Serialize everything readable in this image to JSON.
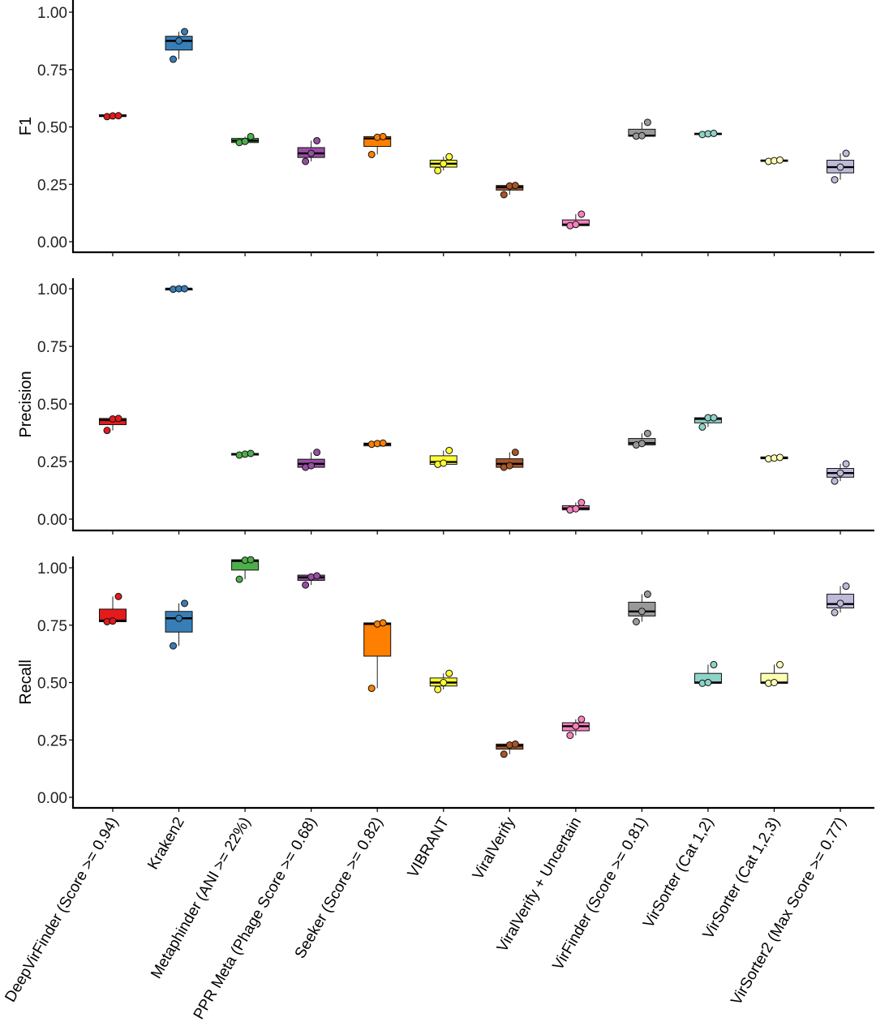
{
  "chart_data": {
    "type": "box",
    "categories": [
      "DeepVirFinder (Score >= 0.94)",
      "Kraken2",
      "Metaphinder (ANI >= 22%)",
      "PPR Meta (Phage Score >= 0.68)",
      "Seeker (Score >= 0.82)",
      "VIBRANT",
      "ViralVerify",
      "ViralVerify + Uncertain",
      "VirFinder (Score >= 0.81)",
      "VirSorter (Cat 1,2)",
      "VirSorter (Cat 1,2,3)",
      "VirSorter2 (Max Score >= 0.77)"
    ],
    "colors": [
      "#e41a1c",
      "#377eb8",
      "#4daf4a",
      "#984ea3",
      "#ff7f00",
      "#ffff33",
      "#a65628",
      "#f781bf",
      "#999999",
      "#8dd3c7",
      "#ffffb3",
      "#bebada"
    ],
    "panels": [
      {
        "ylabel": "F1",
        "ylim": [
          -0.04,
          1.04
        ],
        "yticks": [
          "0.00",
          "0.25",
          "0.50",
          "0.75",
          "1.00"
        ],
        "boxes": [
          {
            "q1": 0.545,
            "median": 0.55,
            "q3": 0.553,
            "whisker_low": 0.545,
            "whisker_high": 0.553,
            "points": [
              0.545,
              0.548,
              0.549
            ]
          },
          {
            "q1": 0.835,
            "median": 0.875,
            "q3": 0.895,
            "whisker_low": 0.795,
            "whisker_high": 0.915,
            "points": [
              0.795,
              0.875,
              0.915
            ]
          },
          {
            "q1": 0.432,
            "median": 0.44,
            "q3": 0.45,
            "whisker_low": 0.432,
            "whisker_high": 0.458,
            "points": [
              0.432,
              0.437,
              0.458
            ]
          },
          {
            "q1": 0.367,
            "median": 0.385,
            "q3": 0.41,
            "whisker_low": 0.35,
            "whisker_high": 0.44,
            "points": [
              0.35,
              0.385,
              0.44
            ]
          },
          {
            "q1": 0.415,
            "median": 0.45,
            "q3": 0.458,
            "whisker_low": 0.38,
            "whisker_high": 0.458,
            "points": [
              0.38,
              0.455,
              0.458
            ]
          },
          {
            "q1": 0.325,
            "median": 0.34,
            "q3": 0.355,
            "whisker_low": 0.31,
            "whisker_high": 0.37,
            "points": [
              0.31,
              0.34,
              0.37
            ]
          },
          {
            "q1": 0.225,
            "median": 0.238,
            "q3": 0.245,
            "whisker_low": 0.205,
            "whisker_high": 0.245,
            "points": [
              0.205,
              0.243,
              0.245
            ]
          },
          {
            "q1": 0.07,
            "median": 0.075,
            "q3": 0.095,
            "whisker_low": 0.07,
            "whisker_high": 0.12,
            "points": [
              0.07,
              0.075,
              0.12
            ]
          },
          {
            "q1": 0.46,
            "median": 0.462,
            "q3": 0.49,
            "whisker_low": 0.46,
            "whisker_high": 0.52,
            "points": [
              0.46,
              0.462,
              0.52
            ]
          },
          {
            "q1": 0.467,
            "median": 0.47,
            "q3": 0.472,
            "whisker_low": 0.467,
            "whisker_high": 0.472,
            "points": [
              0.467,
              0.47,
              0.472
            ]
          },
          {
            "q1": 0.35,
            "median": 0.353,
            "q3": 0.356,
            "whisker_low": 0.35,
            "whisker_high": 0.356,
            "points": [
              0.35,
              0.353,
              0.356
            ]
          },
          {
            "q1": 0.3,
            "median": 0.325,
            "q3": 0.355,
            "whisker_low": 0.27,
            "whisker_high": 0.385,
            "points": [
              0.27,
              0.325,
              0.385
            ]
          }
        ]
      },
      {
        "ylabel": "Precision",
        "ylim": [
          -0.04,
          1.04
        ],
        "yticks": [
          "0.00",
          "0.25",
          "0.50",
          "0.75",
          "1.00"
        ],
        "boxes": [
          {
            "q1": 0.41,
            "median": 0.43,
            "q3": 0.437,
            "whisker_low": 0.385,
            "whisker_high": 0.437,
            "points": [
              0.385,
              0.435,
              0.437
            ]
          },
          {
            "q1": 0.998,
            "median": 1.0,
            "q3": 1.0,
            "whisker_low": 0.998,
            "whisker_high": 1.0,
            "points": [
              0.998,
              1.0,
              1.0
            ]
          },
          {
            "q1": 0.278,
            "median": 0.282,
            "q3": 0.285,
            "whisker_low": 0.278,
            "whisker_high": 0.285,
            "points": [
              0.278,
              0.282,
              0.285
            ]
          },
          {
            "q1": 0.225,
            "median": 0.24,
            "q3": 0.26,
            "whisker_low": 0.225,
            "whisker_high": 0.29,
            "points": [
              0.225,
              0.232,
              0.29
            ]
          },
          {
            "q1": 0.318,
            "median": 0.325,
            "q3": 0.33,
            "whisker_low": 0.318,
            "whisker_high": 0.33,
            "points": [
              0.325,
              0.328,
              0.33
            ]
          },
          {
            "q1": 0.238,
            "median": 0.248,
            "q3": 0.275,
            "whisker_low": 0.238,
            "whisker_high": 0.298,
            "points": [
              0.238,
              0.243,
              0.298
            ]
          },
          {
            "q1": 0.225,
            "median": 0.24,
            "q3": 0.262,
            "whisker_low": 0.225,
            "whisker_high": 0.29,
            "points": [
              0.225,
              0.232,
              0.29
            ]
          },
          {
            "q1": 0.04,
            "median": 0.047,
            "q3": 0.058,
            "whisker_low": 0.04,
            "whisker_high": 0.072,
            "points": [
              0.04,
              0.045,
              0.072
            ]
          },
          {
            "q1": 0.322,
            "median": 0.33,
            "q3": 0.35,
            "whisker_low": 0.322,
            "whisker_high": 0.372,
            "points": [
              0.322,
              0.328,
              0.372
            ]
          },
          {
            "q1": 0.418,
            "median": 0.435,
            "q3": 0.44,
            "whisker_low": 0.4,
            "whisker_high": 0.44,
            "points": [
              0.4,
              0.44,
              0.44
            ]
          },
          {
            "q1": 0.262,
            "median": 0.265,
            "q3": 0.27,
            "whisker_low": 0.262,
            "whisker_high": 0.27,
            "points": [
              0.262,
              0.265,
              0.268
            ]
          },
          {
            "q1": 0.182,
            "median": 0.2,
            "q3": 0.22,
            "whisker_low": 0.165,
            "whisker_high": 0.24,
            "points": [
              0.165,
              0.2,
              0.24
            ]
          }
        ]
      },
      {
        "ylabel": "Recall",
        "ylim": [
          -0.04,
          1.04
        ],
        "yticks": [
          "0.00",
          "0.25",
          "0.50",
          "0.75",
          "1.00"
        ],
        "boxes": [
          {
            "q1": 0.765,
            "median": 0.77,
            "q3": 0.82,
            "whisker_low": 0.765,
            "whisker_high": 0.875,
            "points": [
              0.765,
              0.768,
              0.875
            ]
          },
          {
            "q1": 0.72,
            "median": 0.78,
            "q3": 0.81,
            "whisker_low": 0.66,
            "whisker_high": 0.845,
            "points": [
              0.66,
              0.78,
              0.845
            ]
          },
          {
            "q1": 0.99,
            "median": 1.03,
            "q3": 1.035,
            "whisker_low": 0.95,
            "whisker_high": 1.035,
            "points": [
              0.95,
              1.033,
              1.035
            ]
          },
          {
            "q1": 0.945,
            "median": 0.958,
            "q3": 0.968,
            "whisker_low": 0.925,
            "whisker_high": 0.968,
            "points": [
              0.925,
              0.96,
              0.965
            ]
          },
          {
            "q1": 0.615,
            "median": 0.755,
            "q3": 0.76,
            "whisker_low": 0.475,
            "whisker_high": 0.76,
            "points": [
              0.475,
              0.755,
              0.76
            ]
          },
          {
            "q1": 0.485,
            "median": 0.5,
            "q3": 0.52,
            "whisker_low": 0.47,
            "whisker_high": 0.54,
            "points": [
              0.47,
              0.5,
              0.54
            ]
          },
          {
            "q1": 0.21,
            "median": 0.225,
            "q3": 0.232,
            "whisker_low": 0.188,
            "whisker_high": 0.232,
            "points": [
              0.188,
              0.228,
              0.232
            ]
          },
          {
            "q1": 0.29,
            "median": 0.31,
            "q3": 0.325,
            "whisker_low": 0.27,
            "whisker_high": 0.34,
            "points": [
              0.27,
              0.31,
              0.34
            ]
          },
          {
            "q1": 0.79,
            "median": 0.81,
            "q3": 0.85,
            "whisker_low": 0.765,
            "whisker_high": 0.885,
            "points": [
              0.765,
              0.81,
              0.885
            ]
          },
          {
            "q1": 0.497,
            "median": 0.5,
            "q3": 0.54,
            "whisker_low": 0.497,
            "whisker_high": 0.578,
            "points": [
              0.497,
              0.5,
              0.578
            ]
          },
          {
            "q1": 0.497,
            "median": 0.5,
            "q3": 0.54,
            "whisker_low": 0.497,
            "whisker_high": 0.578,
            "points": [
              0.497,
              0.5,
              0.578
            ]
          },
          {
            "q1": 0.825,
            "median": 0.842,
            "q3": 0.885,
            "whisker_low": 0.805,
            "whisker_high": 0.92,
            "points": [
              0.805,
              0.845,
              0.92
            ]
          }
        ]
      }
    ]
  }
}
